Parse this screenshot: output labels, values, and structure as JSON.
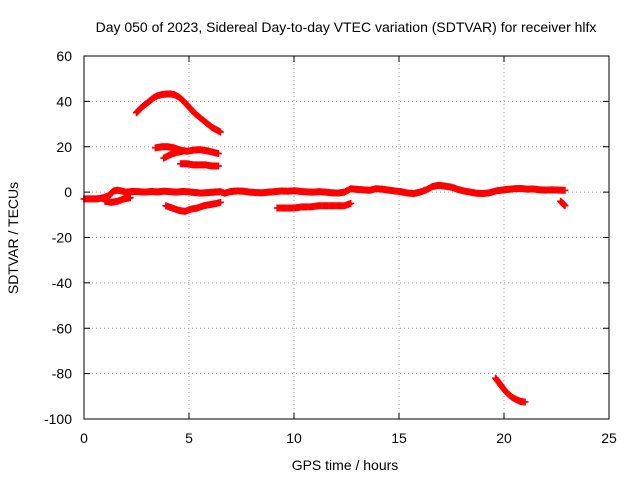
{
  "chart_data": {
    "type": "scatter",
    "title": "Day 050 of 2023, Sidereal Day-to-day VTEC variation (SDTVAR) for receiver hlfx",
    "xlabel": "GPS time / hours",
    "ylabel": "SDTVAR / TECUs",
    "xlim": [
      0,
      25
    ],
    "ylim": [
      -100,
      60
    ],
    "xticks": [
      0,
      5,
      10,
      15,
      20,
      25
    ],
    "yticks": [
      60,
      40,
      20,
      0,
      -20,
      -40,
      -60,
      -80,
      -100
    ],
    "grid": true,
    "legend": "none",
    "marker": "plus",
    "color": "#ff0000",
    "series": [
      {
        "x": [
          0.0,
          0.3,
          0.6,
          0.9,
          1.2,
          1.4,
          1.6,
          1.8,
          2.0,
          2.3,
          2.6,
          2.9,
          3.2,
          3.5,
          3.8,
          4.1,
          4.4,
          4.7,
          5.0,
          5.3,
          5.6,
          5.9,
          6.2,
          6.5,
          6.7,
          7.0,
          7.3,
          7.6,
          7.9,
          8.2,
          8.5,
          8.8,
          9.1,
          9.4,
          9.7,
          10.0,
          10.3,
          10.6,
          10.9,
          11.2,
          11.5,
          11.8,
          12.1,
          12.4,
          12.7,
          13.0,
          13.3,
          13.6,
          13.9,
          14.2,
          14.5,
          14.8,
          15.1,
          15.4,
          15.7,
          16.0,
          16.3,
          16.6,
          16.9,
          17.2,
          17.5,
          17.8,
          18.1,
          18.4,
          18.7,
          19.0,
          19.3,
          19.6,
          19.9,
          20.2,
          20.5,
          20.8,
          21.1,
          21.4,
          21.7,
          22.0,
          22.3,
          22.6,
          22.9
        ],
        "y": [
          -3,
          -3,
          -3,
          -2.5,
          -1.5,
          0.5,
          0.8,
          0.5,
          0,
          0.3,
          0.2,
          0,
          0.3,
          0.1,
          0.4,
          0.2,
          0,
          0.3,
          0.1,
          -0.2,
          -0.4,
          -0.2,
          0,
          0.2,
          -0.5,
          0.3,
          0.5,
          0.4,
          0,
          -0.2,
          -0.3,
          0,
          0.2,
          0.5,
          0.4,
          0.6,
          0.3,
          0.1,
          0,
          0.2,
          0,
          -0.3,
          -0.4,
          0,
          1.5,
          1.2,
          1.0,
          0.8,
          1.5,
          1.3,
          0.9,
          0.5,
          0.2,
          -0.4,
          -0.6,
          0,
          1.0,
          2.5,
          3.0,
          2.6,
          2.2,
          1.2,
          0.5,
          0,
          -0.5,
          -0.6,
          -0.3,
          0.5,
          0.9,
          1.2,
          1.5,
          1.6,
          1.3,
          1.4,
          1.0,
          0.9,
          1.0,
          0.9,
          0.8
        ]
      },
      {
        "x": [
          1.0,
          1.3,
          1.6,
          1.9,
          2.2
        ],
        "y": [
          -4,
          -4.5,
          -4,
          -3,
          -2.5
        ]
      },
      {
        "x": [
          2.5,
          2.7,
          2.9,
          3.1,
          3.3,
          3.5,
          3.7,
          3.9,
          4.1,
          4.3,
          4.5,
          4.7,
          4.9,
          5.1,
          5.3,
          5.5,
          5.7,
          5.9,
          6.1,
          6.3,
          6.5
        ],
        "y": [
          35,
          37,
          38.5,
          40,
          41.5,
          42.5,
          43,
          43.2,
          43.3,
          43,
          42,
          40.5,
          38.5,
          36.5,
          34.5,
          33,
          31.5,
          30,
          28.5,
          27.5,
          26.5
        ]
      },
      {
        "x": [
          3.4,
          3.7,
          4.0,
          4.3,
          4.6,
          4.9,
          5.2,
          5.5,
          5.8,
          6.1,
          6.4
        ],
        "y": [
          19.5,
          20,
          20,
          19.5,
          18.5,
          18,
          18.5,
          18.7,
          18.3,
          17.7,
          17
        ]
      },
      {
        "x": [
          3.8,
          4.1,
          4.4,
          4.7
        ],
        "y": [
          15,
          16.5,
          17.5,
          18
        ]
      },
      {
        "x": [
          4.6,
          4.9,
          5.2,
          5.5,
          5.8,
          6.1,
          6.4
        ],
        "y": [
          12.5,
          12.5,
          12,
          12,
          12,
          11.5,
          11.5
        ]
      },
      {
        "x": [
          3.9,
          4.2,
          4.5,
          4.8,
          5.1,
          5.4,
          5.7,
          6.0,
          6.3,
          6.5
        ],
        "y": [
          -6,
          -7,
          -8,
          -8.5,
          -7.5,
          -7,
          -6,
          -5.5,
          -5,
          -4.5
        ]
      },
      {
        "x": [
          9.2,
          9.6,
          10.0,
          10.4,
          10.8,
          11.2,
          11.6,
          12.0,
          12.4,
          12.7
        ],
        "y": [
          -7,
          -7,
          -7,
          -6.5,
          -6.5,
          -6,
          -6,
          -6,
          -6,
          -5
        ]
      },
      {
        "x": [
          22.7,
          22.8,
          22.9
        ],
        "y": [
          -4,
          -5,
          -6
        ]
      },
      {
        "x": [
          19.6,
          19.8,
          20.0,
          20.2,
          20.4,
          20.6,
          20.8,
          21.0
        ],
        "y": [
          -82,
          -84.5,
          -87,
          -89,
          -90.5,
          -91.5,
          -92.3,
          -92.5
        ]
      }
    ]
  }
}
